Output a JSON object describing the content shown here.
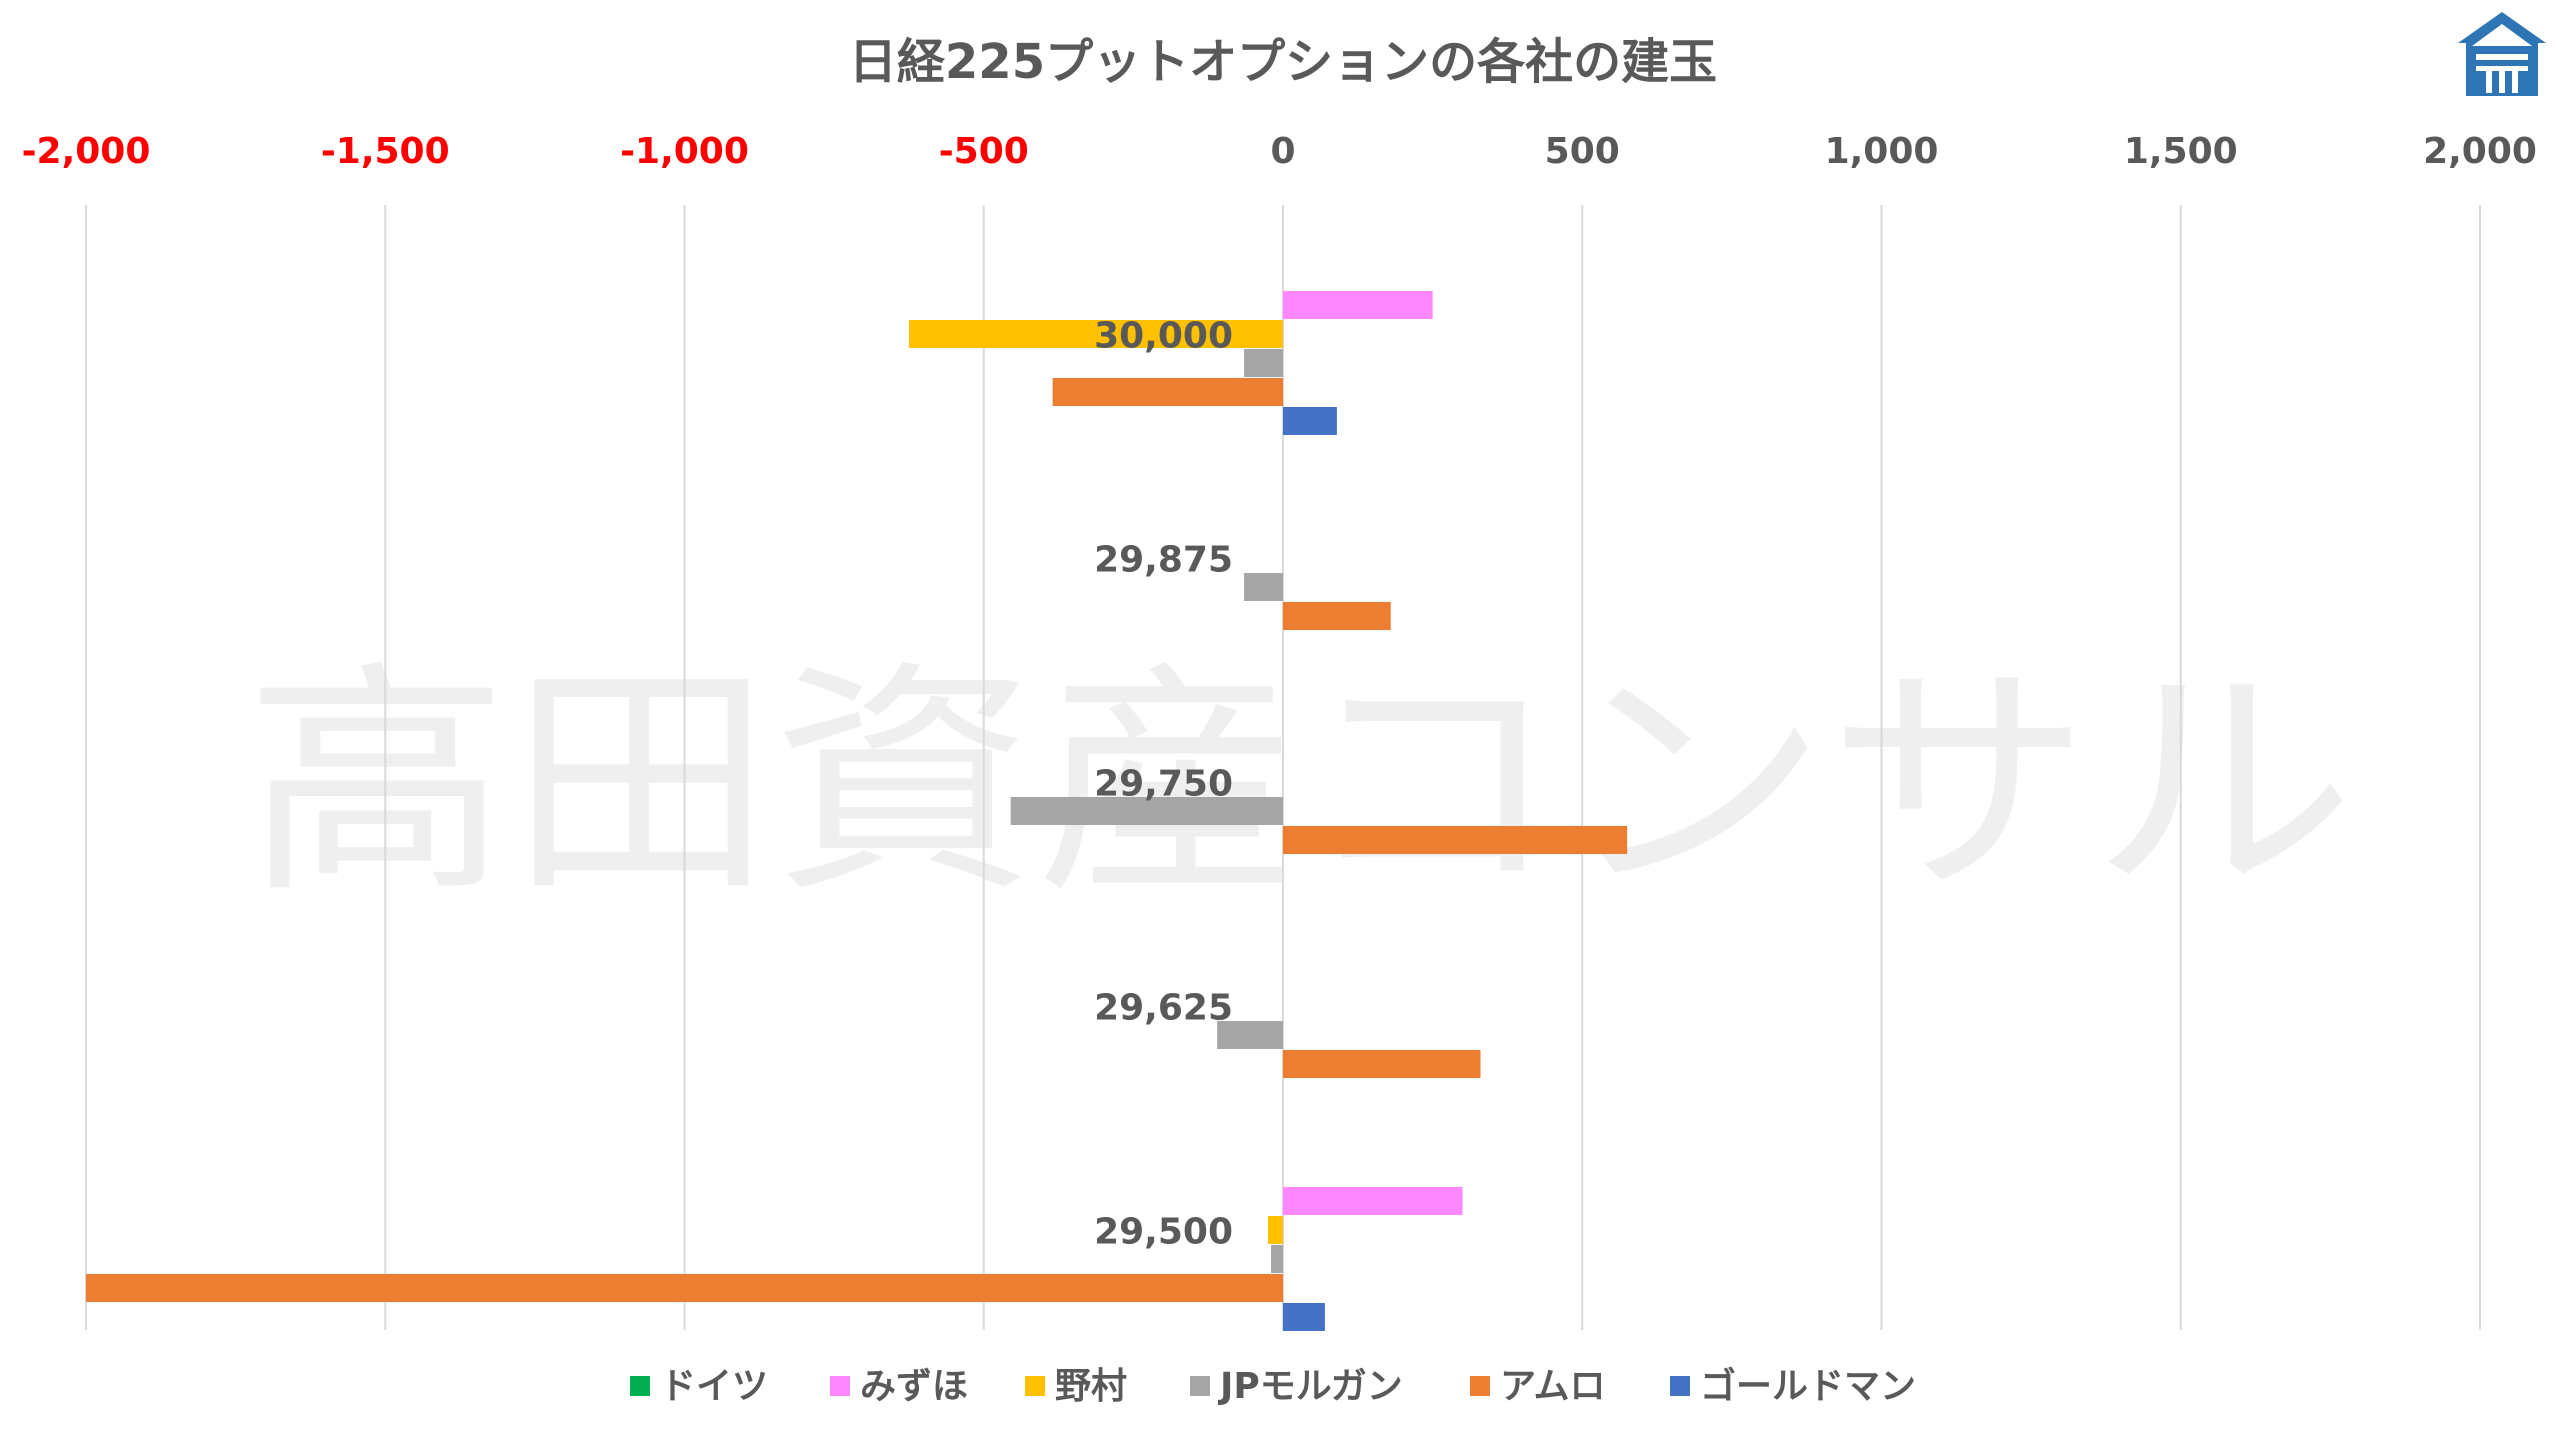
{
  "chart_data": {
    "type": "bar",
    "orientation": "horizontal",
    "title": "日経225プットオプションの各社の建玉",
    "watermark": "高田資産コンサル",
    "xlim": [
      -2000,
      2000
    ],
    "x_ticks": [
      -2000,
      -1500,
      -1000,
      -500,
      0,
      500,
      1000,
      1500,
      2000
    ],
    "x_tick_labels": [
      "-2,000",
      "-1,500",
      "-1,000",
      "-500",
      "0",
      "500",
      "1,000",
      "1,500",
      "2,000"
    ],
    "x_axis_position": "top",
    "negative_tick_color": "#ff0000",
    "positive_tick_color": "#595959",
    "grid": true,
    "legend_position": "bottom",
    "categories": [
      "30,000",
      "29,875",
      "29,750",
      "29,625",
      "29,500"
    ],
    "series": [
      {
        "name": "ドイツ",
        "color": "#00b050",
        "values": [
          0,
          0,
          0,
          0,
          0
        ]
      },
      {
        "name": "みずほ",
        "color": "#ff88ff",
        "values": [
          250,
          0,
          0,
          0,
          300
        ]
      },
      {
        "name": "野村",
        "color": "#ffc000",
        "values": [
          -625,
          0,
          0,
          0,
          -25
        ]
      },
      {
        "name": "JPモルガン",
        "color": "#a5a5a5",
        "values": [
          -65,
          -65,
          -455,
          -110,
          -20
        ]
      },
      {
        "name": "アムロ",
        "color": "#ed7d31",
        "values": [
          -385,
          180,
          575,
          330,
          -2000
        ]
      },
      {
        "name": "ゴールドマン",
        "color": "#4472c4",
        "values": [
          90,
          0,
          0,
          0,
          70
        ]
      }
    ]
  },
  "logo": {
    "icon": "house-logo-icon",
    "color": "#2e75b6"
  }
}
